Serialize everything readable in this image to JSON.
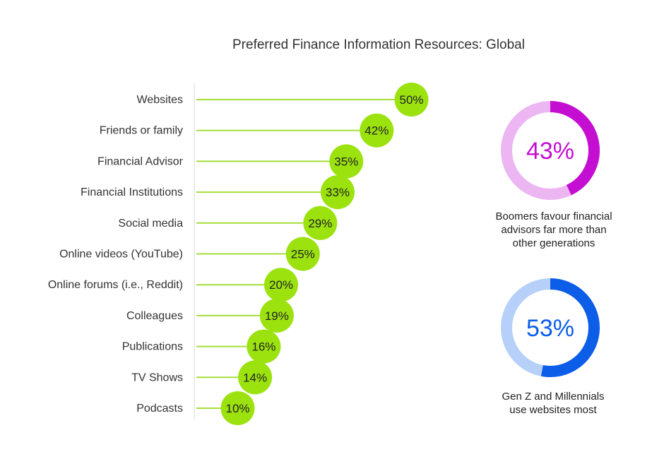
{
  "chart_data": [
    {
      "type": "lollipop",
      "title": "Preferred Finance Information Resources: Global",
      "categories": [
        "Websites",
        "Friends or family",
        "Financial Advisor",
        "Financial Institutions",
        "Social media",
        "Online videos (YouTube)",
        "Online forums (i.e., Reddit)",
        "Colleagues",
        "Publications",
        "TV Shows",
        "Podcasts"
      ],
      "values": [
        50,
        42,
        35,
        33,
        29,
        25,
        20,
        19,
        16,
        14,
        10
      ],
      "value_labels": [
        "50%",
        "42%",
        "35%",
        "33%",
        "29%",
        "25%",
        "20%",
        "19%",
        "16%",
        "14%",
        "10%"
      ],
      "unit": "%",
      "color": "#9be20f",
      "line_color": "#a6dd3a"
    },
    {
      "type": "pie",
      "subtype": "donut",
      "value": 43,
      "label": "43%",
      "caption": [
        "Boomers favour financial",
        "advisors far more than",
        "other generations"
      ],
      "color": "#c40ed2",
      "track_color": "#ecb6f3"
    },
    {
      "type": "pie",
      "subtype": "donut",
      "value": 53,
      "label": "53%",
      "caption": [
        "Gen Z and Millennials",
        "use websites most"
      ],
      "color": "#0c5de8",
      "track_color": "#b6d0fa"
    }
  ]
}
